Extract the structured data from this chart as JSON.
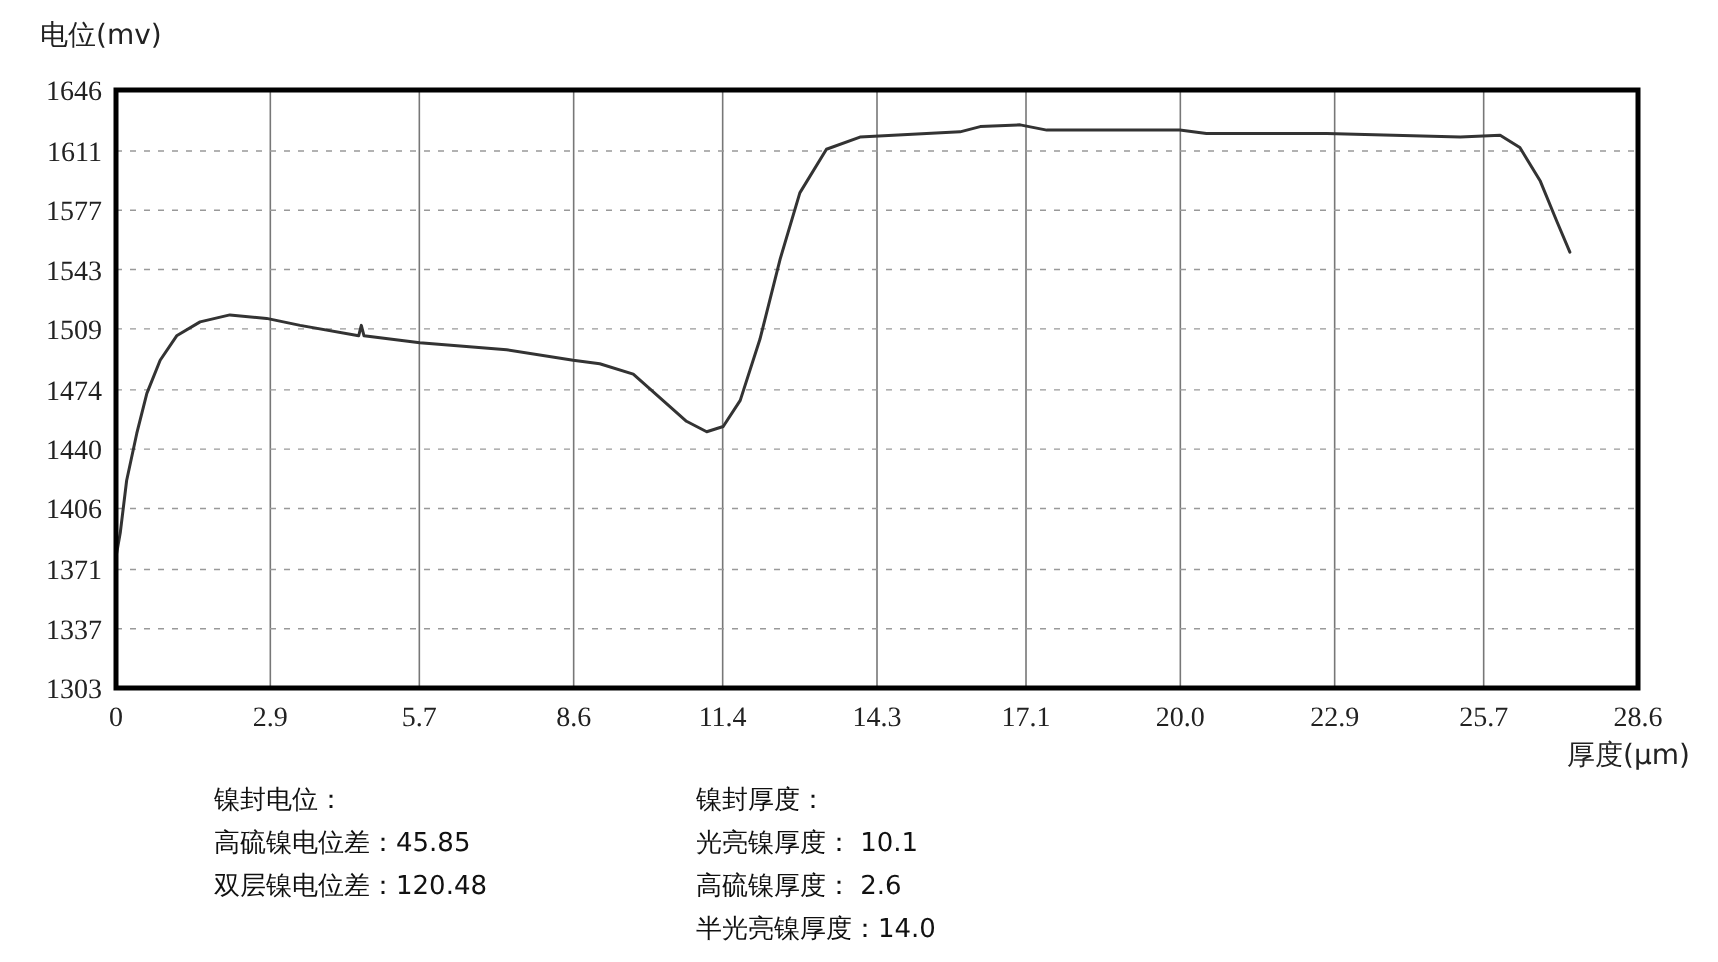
{
  "chart_data": {
    "type": "line",
    "ylabel": "电位(mv)",
    "xlabel": "厚度(μm)",
    "xlim": [
      0,
      28.6
    ],
    "ylim": [
      1303,
      1646
    ],
    "xticks": [
      0,
      2.9,
      5.7,
      8.6,
      11.4,
      14.3,
      17.1,
      {
        "value": 20.0,
        "label": "20.0"
      },
      22.9,
      25.7,
      28.6
    ],
    "yticks": [
      1303,
      1337,
      1371,
      1406,
      1440,
      1474,
      1509,
      1543,
      1577,
      1611,
      1646
    ],
    "grid": true,
    "series": [
      {
        "color": "#333333",
        "x": [
          0.01,
          0.08,
          0.2,
          0.39,
          0.58,
          0.83,
          1.14,
          1.58,
          2.14,
          2.83,
          3.46,
          4.56,
          4.61,
          4.66,
          5.71,
          7.34,
          8.59,
          9.09,
          9.72,
          10.35,
          10.72,
          11.1,
          11.41,
          11.73,
          12.1,
          12.48,
          12.85,
          13.35,
          13.98,
          15.86,
          16.24,
          16.99,
          17.49,
          19.99,
          20.49,
          22.75,
          25.26,
          26.01,
          26.38,
          26.76,
          27.07,
          27.32
        ],
        "values": [
          1380,
          1392,
          1422,
          1449,
          1472,
          1491,
          1505,
          1513,
          1517,
          1515,
          1511,
          1505,
          1511,
          1505,
          1501,
          1497,
          1491,
          1489,
          1483,
          1466,
          1456,
          1450,
          1453,
          1468,
          1503,
          1549,
          1587,
          1612,
          1619,
          1622,
          1625,
          1626,
          1623,
          1623,
          1621,
          1621,
          1619,
          1620,
          1613,
          1594,
          1571,
          1553
        ]
      }
    ],
    "annotations": [
      "镍封电位：",
      "高硫镍电位差：45.85",
      "双层镍电位差：120.48",
      "镍封厚度：",
      "光亮镍厚度：  10.1",
      "高硫镍厚度：  2.6",
      "半光亮镍厚度：14.0"
    ]
  }
}
